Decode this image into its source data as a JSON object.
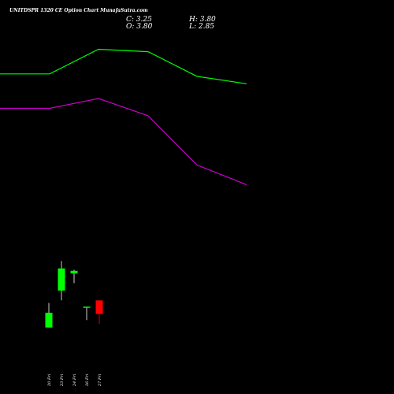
{
  "header": {
    "title": "UNITDSPR 1320 CE Option Chart MunafaSutra.com",
    "close": "C: 3.25",
    "high": "H: 3.80",
    "open": "O: 3.80",
    "low": "L: 2.85"
  },
  "colors": {
    "background": "#000000",
    "up_candle": "#00ff00",
    "down_candle": "#ff0000",
    "series_upper": "#00ff00",
    "series_lower": "#cc00cc",
    "text": "#ffffff"
  },
  "chart_data": {
    "type": "candlestick",
    "x_tick_labels": [
      "20 Fri",
      "23 Fri",
      "24 Fri",
      "26 Fri",
      "27 Fri"
    ],
    "y_range": [
      0,
      16
    ],
    "candles": [
      {
        "x": "20 Fri",
        "open": 2.7,
        "high": 3.7,
        "low": 2.7,
        "close": 3.3
      },
      {
        "x": "23 Fri",
        "open": 4.2,
        "high": 5.4,
        "low": 3.8,
        "close": 5.1
      },
      {
        "x": "24 Fri",
        "open": 4.9,
        "high": 5.05,
        "low": 4.5,
        "close": 5.0
      },
      {
        "x": "26 Fri",
        "open": 3.5,
        "high": 3.55,
        "low": 3.0,
        "close": 3.55
      },
      {
        "x": "27 Fri",
        "open": 3.8,
        "high": 3.8,
        "low": 2.85,
        "close": 3.25
      }
    ],
    "lines": [
      {
        "color": "#00ff00",
        "values": [
          13.0,
          13.0,
          14.0,
          13.9,
          12.9,
          12.6
        ]
      },
      {
        "color": "#cc00cc",
        "values": [
          11.6,
          11.6,
          12.0,
          11.3,
          9.3,
          8.5
        ]
      }
    ]
  }
}
